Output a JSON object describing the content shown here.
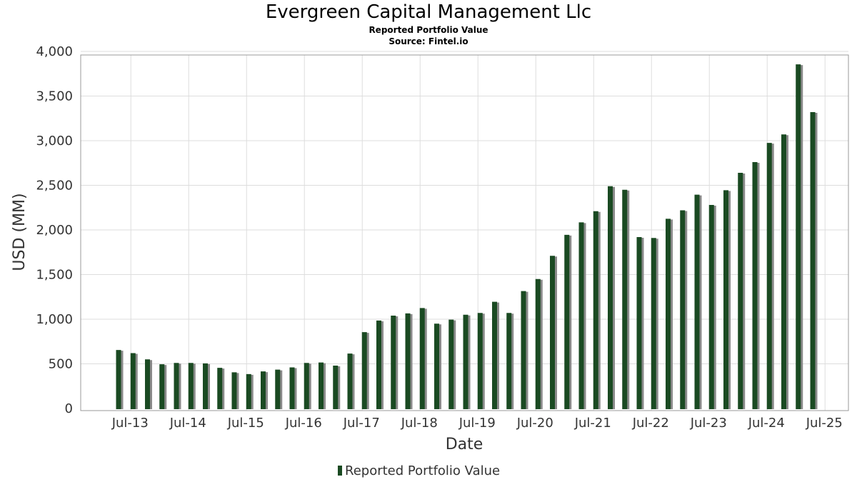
{
  "title": "Evergreen Capital Management Llc",
  "subtitle": "Reported Portfolio Value",
  "source": "Source: Fintel.io",
  "colors": {
    "bar": "#1a4a22",
    "shadow": "#8a8a8a",
    "grid": "#dddddd",
    "frame": "#999999"
  },
  "chart_data": {
    "type": "bar",
    "xlabel": "Date",
    "ylabel": "USD (MM)",
    "ylim": [
      0,
      4000
    ],
    "yticks": [
      0,
      500,
      1000,
      1500,
      2000,
      2500,
      3000,
      3500,
      4000
    ],
    "ytick_labels": [
      "0",
      "500",
      "1,000",
      "1,500",
      "2,000",
      "2,500",
      "3,000",
      "3,500",
      "4,000"
    ],
    "xtick_labels": [
      "Jul-13",
      "Jul-14",
      "Jul-15",
      "Jul-16",
      "Jul-17",
      "Jul-18",
      "Jul-19",
      "Jul-20",
      "Jul-21",
      "Jul-22",
      "Jul-23",
      "Jul-24",
      "Jul-25"
    ],
    "grid": true,
    "legend": {
      "position": "bottom-center",
      "entries": [
        "Reported Portfolio Value"
      ]
    },
    "series": [
      {
        "name": "Reported Portfolio Value",
        "x": [
          "Q2-13",
          "Q3-13",
          "Q4-13",
          "Q1-14",
          "Q2-14",
          "Q3-14",
          "Q4-14",
          "Q1-15",
          "Q2-15",
          "Q3-15",
          "Q4-15",
          "Q1-16",
          "Q2-16",
          "Q3-16",
          "Q4-16",
          "Q1-17",
          "Q2-17",
          "Q3-17",
          "Q4-17",
          "Q1-18",
          "Q2-18",
          "Q3-18",
          "Q4-18",
          "Q1-19",
          "Q2-19",
          "Q3-19",
          "Q4-19",
          "Q1-20",
          "Q2-20",
          "Q3-20",
          "Q4-20",
          "Q1-21",
          "Q2-21",
          "Q3-21",
          "Q4-21",
          "Q1-22",
          "Q2-22",
          "Q3-22",
          "Q4-22",
          "Q1-23",
          "Q2-23",
          "Q3-23",
          "Q4-23",
          "Q1-24",
          "Q2-24",
          "Q3-24",
          "Q4-24",
          "Q1-25",
          "Q2-25"
        ],
        "values": [
          655,
          620,
          550,
          495,
          510,
          510,
          505,
          455,
          405,
          385,
          415,
          435,
          460,
          510,
          515,
          480,
          615,
          855,
          985,
          1040,
          1065,
          1125,
          950,
          995,
          1050,
          1070,
          1195,
          1070,
          1315,
          1450,
          1710,
          1945,
          2085,
          2210,
          2490,
          2450,
          1920,
          1910,
          2125,
          2220,
          2395,
          2280,
          2445,
          2640,
          2760,
          2975,
          3070,
          3855,
          3320
        ]
      }
    ]
  }
}
